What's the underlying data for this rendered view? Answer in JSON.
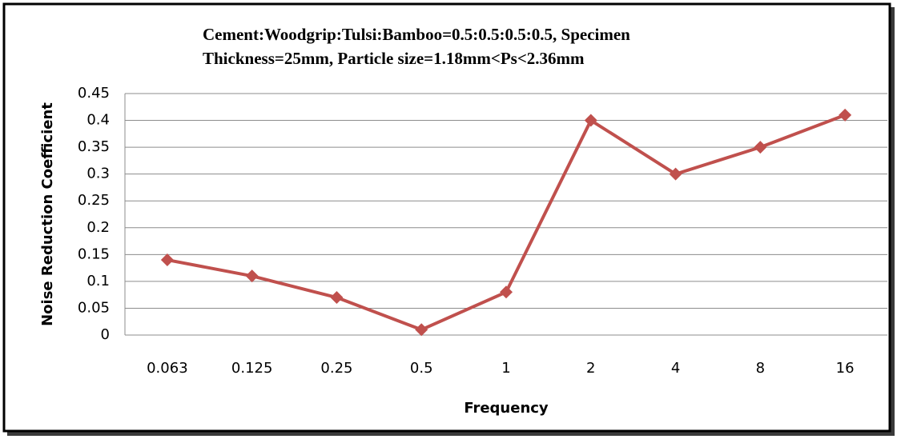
{
  "chart_data": {
    "type": "line",
    "title": [
      "Cement:Woodgrip:Tulsi:Bamboo=0.5:0.5:0.5:0.5, Specimen",
      "Thickness=25mm, Particle size=1.18mm<Ps<2.36mm"
    ],
    "x_label": "Frequency",
    "y_label": "Noise Reduction Coefficient",
    "categories": [
      "0.063",
      "0.125",
      "0.25",
      "0.5",
      "1",
      "2",
      "4",
      "8",
      "16"
    ],
    "series": [
      {
        "color": "#c0504d",
        "values": [
          0.14,
          0.11,
          0.07,
          0.01,
          0.08,
          0.4,
          0.3,
          0.35,
          0.41
        ]
      }
    ],
    "ylim": [
      0,
      0.45
    ],
    "yticks": [
      0,
      0.05,
      0.1,
      0.15,
      0.2,
      0.25,
      0.3,
      0.35,
      0.4,
      0.45
    ],
    "grid": true
  }
}
